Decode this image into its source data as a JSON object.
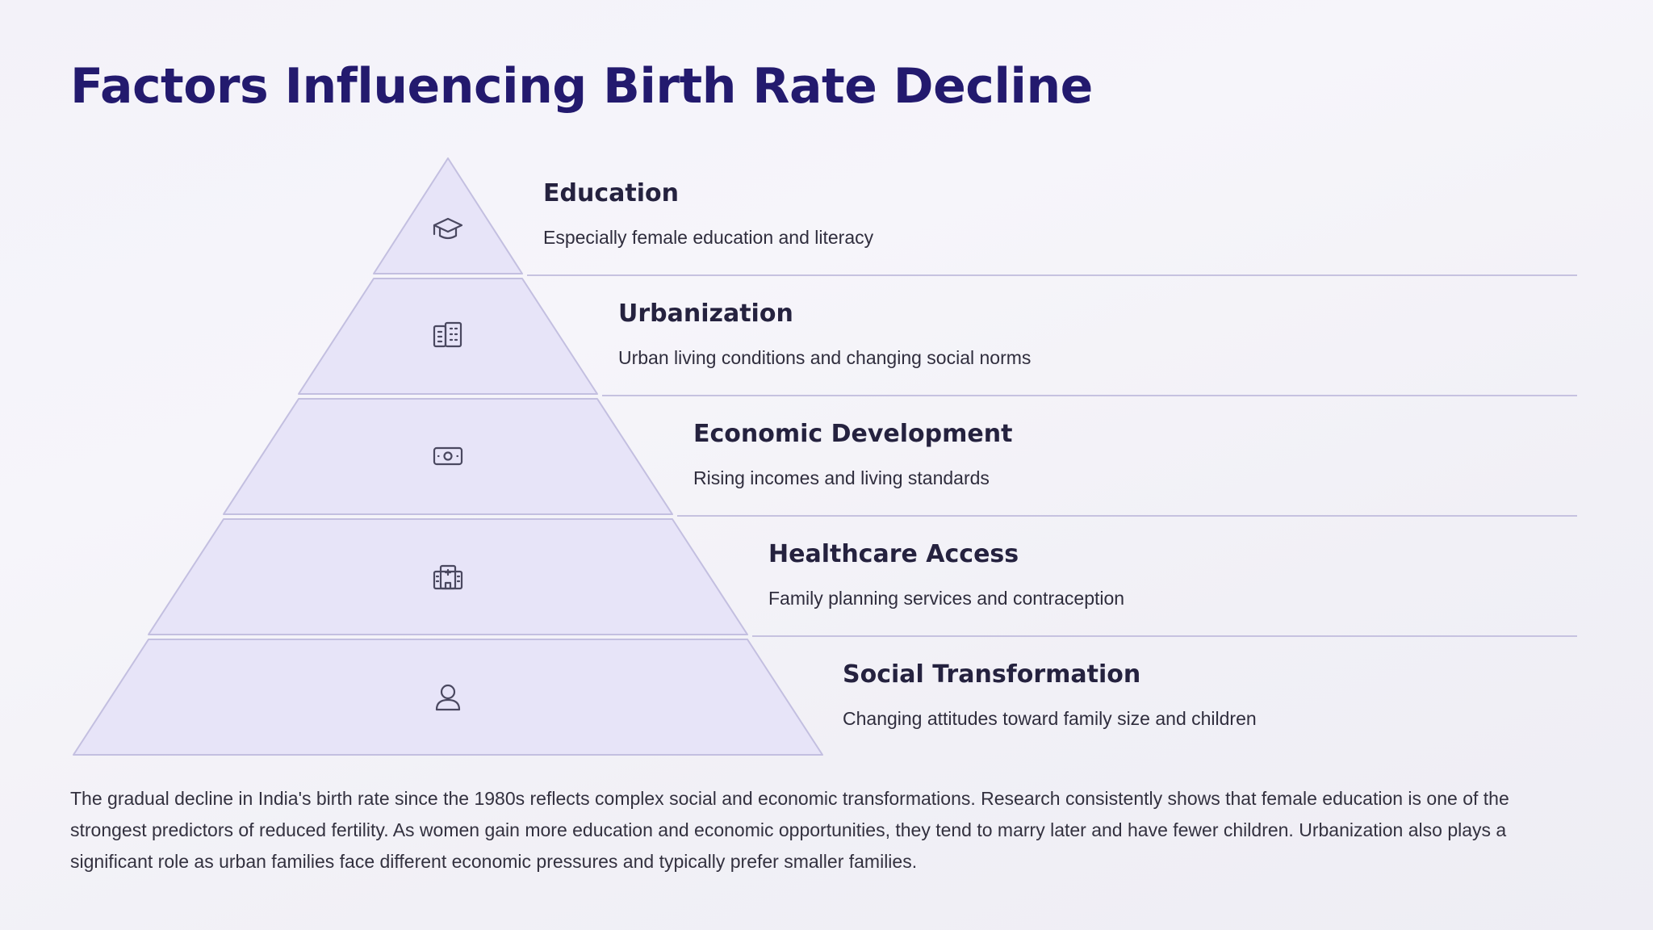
{
  "title": "Factors Influencing Birth Rate Decline",
  "colors": {
    "title": "#231a6e",
    "tier_fill": "#e7e4f8",
    "tier_stroke": "#c3bfe0",
    "divider": "#c6c2e0",
    "icon": "#4a4860"
  },
  "tiers": [
    {
      "heading": "Education",
      "description": "Especially female education and literacy",
      "icon": "graduation-cap-icon"
    },
    {
      "heading": "Urbanization",
      "description": "Urban living conditions and changing social norms",
      "icon": "buildings-icon"
    },
    {
      "heading": "Economic Development",
      "description": "Rising incomes and living standards",
      "icon": "banknote-icon"
    },
    {
      "heading": "Healthcare Access",
      "description": "Family planning services and contraception",
      "icon": "hospital-icon"
    },
    {
      "heading": "Social Transformation",
      "description": "Changing attitudes toward family size and children",
      "icon": "person-icon"
    }
  ],
  "summary": "The gradual decline in India's birth rate since the 1980s reflects complex social and economic transformations. Research consistently shows that female education is one of the strongest predictors of reduced fertility. As women gain more education and economic opportunities, they tend to marry later and have fewer children. Urbanization also plays a significant role as urban families face different economic pressures and typically prefer smaller families."
}
